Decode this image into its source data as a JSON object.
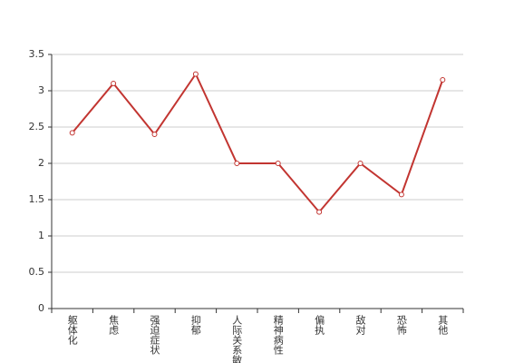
{
  "chart_data": {
    "type": "line",
    "categories": [
      "躯体化",
      "焦虑",
      "强迫症状",
      "抑郁",
      "人际关系敏感",
      "精神病性",
      "偏执",
      "敌对",
      "恐怖",
      "其他"
    ],
    "series": [
      {
        "color": "#c23531",
        "values": [
          2.42,
          3.1,
          2.4,
          3.23,
          2.0,
          2.0,
          1.33,
          2.0,
          1.57,
          3.15
        ]
      }
    ],
    "ylim": [
      0,
      3.5
    ],
    "yticks": [
      0,
      0.5,
      1,
      1.5,
      2,
      2.5,
      3,
      3.5
    ],
    "grid": true
  }
}
